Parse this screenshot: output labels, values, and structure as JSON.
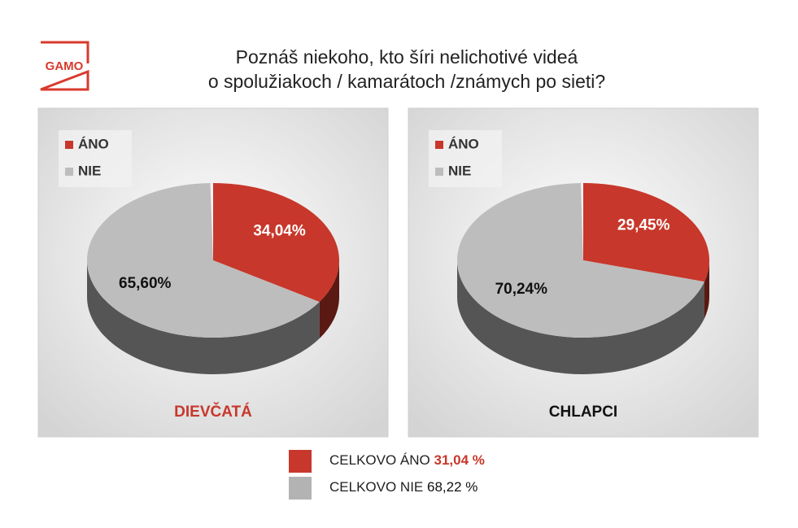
{
  "logo": "GAMO",
  "title": [
    "Poznáš niekoho, kto šíri nelichotivé videá",
    "o spolužiakoch / kamarátoch /známych po sieti?"
  ],
  "chart_data": [
    {
      "type": "pie",
      "title": "DIEVČATÁ",
      "title_color": "#c8372b",
      "categories": [
        "ÁNO",
        "NIE"
      ],
      "values": [
        34.04,
        65.6
      ],
      "value_labels": [
        "34,04%",
        "65,60%"
      ],
      "colors": [
        "#c8372b",
        "#bdbdbd"
      ],
      "legend": "top-left"
    },
    {
      "type": "pie",
      "title": "CHLAPCI",
      "title_color": "#111111",
      "categories": [
        "ÁNO",
        "NIE"
      ],
      "values": [
        29.45,
        70.24
      ],
      "value_labels": [
        "29,45%",
        "70,24%"
      ],
      "colors": [
        "#c8372b",
        "#bdbdbd"
      ],
      "legend": "top-left"
    }
  ],
  "summary": [
    {
      "label": "CELKOVO ÁNO",
      "value": "31,04 %",
      "color": "#c8372b",
      "value_color": "#c8372b"
    },
    {
      "label": "CELKOVO NIE",
      "value": "68,22 %",
      "color": "#b3b3b3",
      "value_color": "#111111"
    }
  ]
}
